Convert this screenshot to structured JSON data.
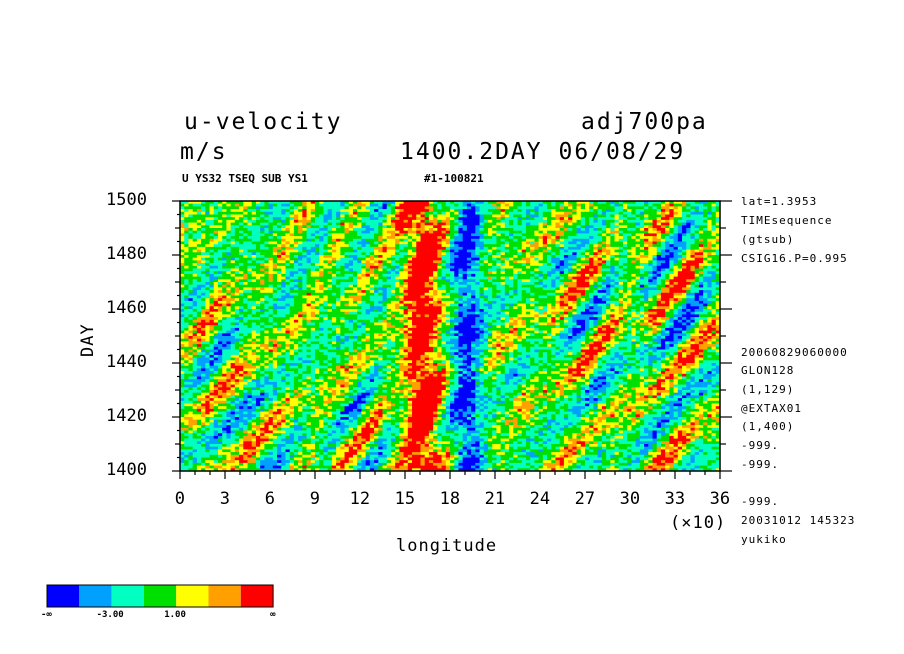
{
  "header": {
    "title_left": "u-velocity",
    "title_right": "adj700pa",
    "units": "m/s",
    "time_label": "1400.2DAY 06/08/29",
    "info_left": "U YS32 TSEQ SUB YS1",
    "info_right": "#1-100821"
  },
  "side_info": {
    "top": [
      "lat=1.3953",
      "TIMEsequence",
      "(gtsub)",
      "CSIG16.P=0.995"
    ],
    "bottom": [
      "20060829060000",
      "GLON128",
      "(1,129)",
      "@EXTAX01",
      "(1,400)",
      "-999.",
      "-999.",
      "-999.",
      "20031012 145323",
      "yukiko"
    ]
  },
  "colorbar": {
    "colors": [
      "#0000ff",
      "#00a0ff",
      "#00ffc0",
      "#00e000",
      "#ffff00",
      "#ffa000",
      "#ff0000"
    ],
    "labels": [
      "-∞",
      "-3.00",
      "1.00",
      "∞"
    ]
  },
  "chart_data": {
    "type": "heatmap",
    "title": "u-velocity",
    "xlabel": "longitude",
    "ylabel": "DAY",
    "x_multiplier_label": "(×10)",
    "xlim": [
      0,
      36
    ],
    "ylim": [
      1400,
      1500
    ],
    "x_ticks": [
      "0",
      "3",
      "6",
      "9",
      "12",
      "15",
      "18",
      "21",
      "24",
      "27",
      "30",
      "33",
      "36"
    ],
    "y_ticks": [
      "1400",
      "1420",
      "1440",
      "1460",
      "1480",
      "1500"
    ],
    "levels": [
      -3.0,
      1.0
    ],
    "features": {
      "strong_positive_band_longitude_x10": 16,
      "negative_band_longitude_x10": 19
    }
  }
}
